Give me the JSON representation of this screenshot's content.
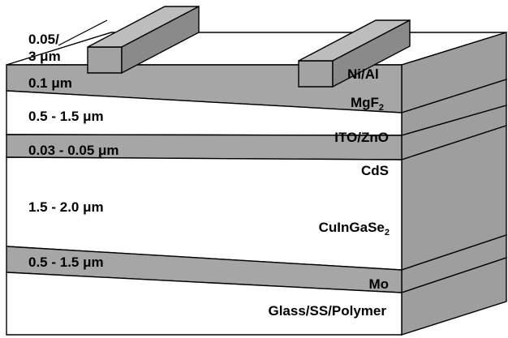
{
  "colors": {
    "film": "#a6a6a6",
    "thick_layer": "#ffffff",
    "side_face": "#9e9e9e",
    "top_face": "#ffffff",
    "contact_front": "#a3a3a3",
    "contact_top": "#bdbdbd",
    "contact_side": "#8a8a8a",
    "outline": "#000000"
  },
  "contact": {
    "thickness_label_line1": "0.05/",
    "thickness_label_line2": "3 μm",
    "material": "Ni/Al"
  },
  "layers": [
    {
      "id": "mgf2",
      "material": "MgF",
      "subscript": "2",
      "thickness": "0.1 μm",
      "shade": "film"
    },
    {
      "id": "ito-zno",
      "material": "ITO/ZnO",
      "subscript": "",
      "thickness": "0.5 - 1.5 μm",
      "shade": "thick_layer"
    },
    {
      "id": "cds",
      "material": "CdS",
      "subscript": "",
      "thickness": "0.03 - 0.05 μm",
      "shade": "film"
    },
    {
      "id": "cigs",
      "material": "CuInGaSe",
      "subscript": "2",
      "thickness": "1.5 - 2.0 μm",
      "shade": "thick_layer"
    },
    {
      "id": "mo",
      "material": "Mo",
      "subscript": "",
      "thickness": "0.5 - 1.5 μm",
      "shade": "film"
    },
    {
      "id": "substrate",
      "material": "Glass/SS/Polymer",
      "subscript": "",
      "thickness": "",
      "shade": "thick_layer"
    }
  ]
}
